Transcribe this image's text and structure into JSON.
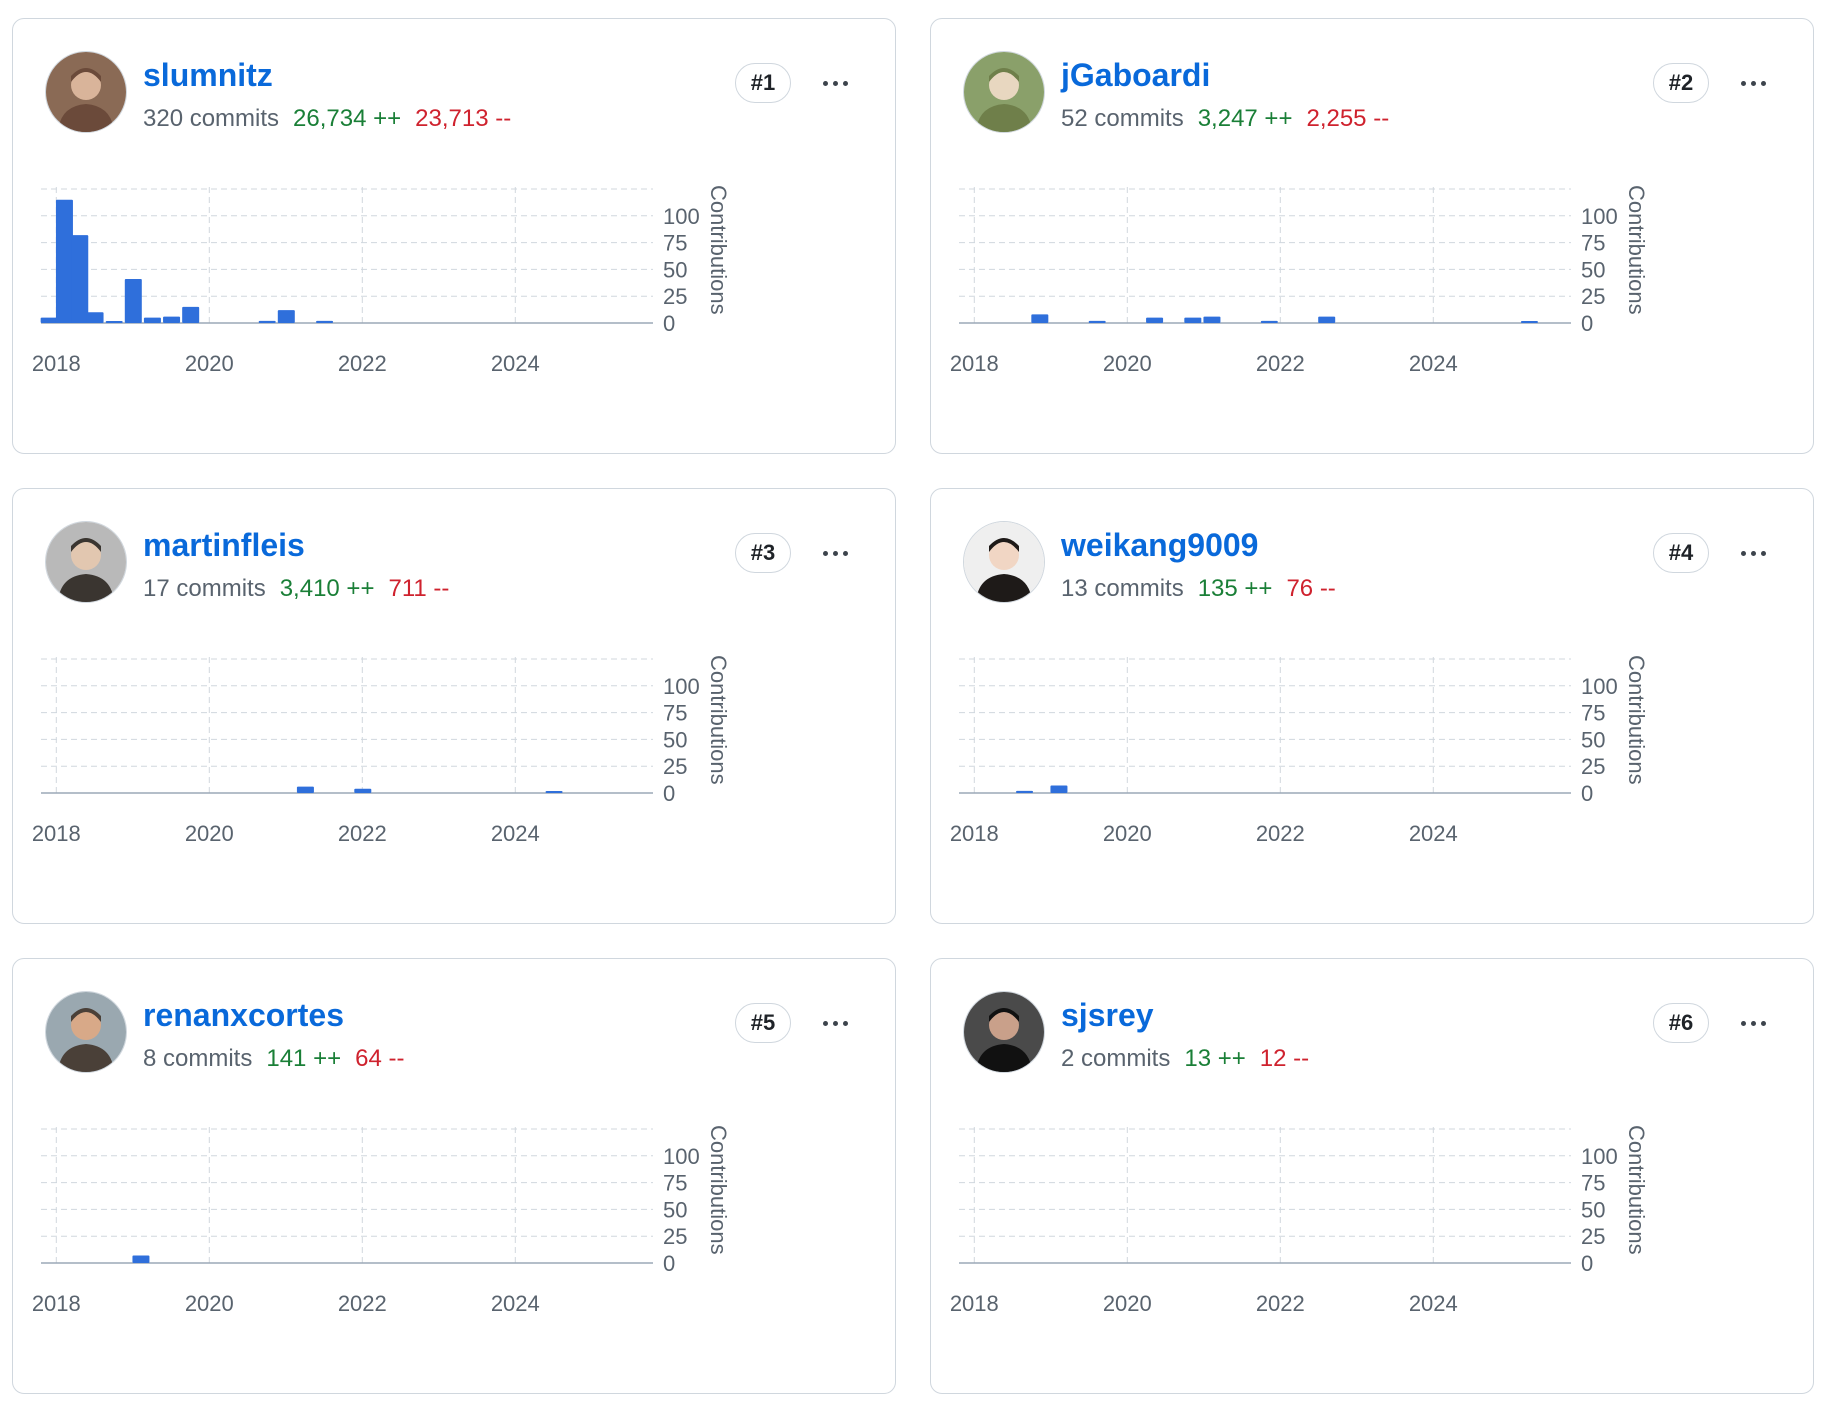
{
  "chart_axes": {
    "x_ticks": [
      "2018",
      "2020",
      "2022",
      "2024"
    ],
    "y_ticks": [
      "0",
      "25",
      "50",
      "75",
      "100"
    ],
    "y_label": "Contributions",
    "bar_color": "#2f6fdb"
  },
  "colors": {
    "link": "#0969da",
    "additions": "#1a7f37",
    "deletions": "#cf222e",
    "border": "#d0d7de"
  },
  "contributors": [
    {
      "username": "slumnitz",
      "rank": "#1",
      "commits": "320 commits",
      "additions": "26,734 ++",
      "deletions": "23,713 --",
      "avatar": "avatar-photo-icon",
      "menu": "more-options-icon"
    },
    {
      "username": "jGaboardi",
      "rank": "#2",
      "commits": "52 commits",
      "additions": "3,247 ++",
      "deletions": "2,255 --",
      "avatar": "avatar-photo-icon",
      "menu": "more-options-icon"
    },
    {
      "username": "martinfleis",
      "rank": "#3",
      "commits": "17 commits",
      "additions": "3,410 ++",
      "deletions": "711 --",
      "avatar": "avatar-photo-icon",
      "menu": "more-options-icon"
    },
    {
      "username": "weikang9009",
      "rank": "#4",
      "commits": "13 commits",
      "additions": "135 ++",
      "deletions": "76 --",
      "avatar": "avatar-photo-icon",
      "menu": "more-options-icon"
    },
    {
      "username": "renanxcortes",
      "rank": "#5",
      "commits": "8 commits",
      "additions": "141 ++",
      "deletions": "64 --",
      "avatar": "avatar-photo-icon",
      "menu": "more-options-icon"
    },
    {
      "username": "sjsrey",
      "rank": "#6",
      "commits": "2 commits",
      "additions": "13 ++",
      "deletions": "12 --",
      "avatar": "avatar-photo-icon",
      "menu": "more-options-icon"
    }
  ],
  "chart_data": [
    {
      "type": "bar",
      "xlabel": "",
      "ylabel": "Contributions",
      "ylim": [
        0,
        125
      ],
      "x_range": [
        2017.8,
        2025.8
      ],
      "x": [
        2017.9,
        2018.1,
        2018.3,
        2018.5,
        2018.75,
        2019.0,
        2019.25,
        2019.5,
        2019.75,
        2020.75,
        2021.0,
        2021.5
      ],
      "values": [
        5,
        115,
        82,
        10,
        1,
        41,
        5,
        6,
        15,
        2,
        12,
        2
      ]
    },
    {
      "type": "bar",
      "xlabel": "",
      "ylabel": "Contributions",
      "ylim": [
        0,
        125
      ],
      "x_range": [
        2017.8,
        2025.8
      ],
      "x": [
        2018.85,
        2019.6,
        2020.35,
        2020.85,
        2021.1,
        2021.85,
        2022.6,
        2025.25
      ],
      "values": [
        8,
        2,
        5,
        5,
        6,
        2,
        6,
        1
      ]
    },
    {
      "type": "bar",
      "xlabel": "",
      "ylabel": "Contributions",
      "ylim": [
        0,
        125
      ],
      "x_range": [
        2017.8,
        2025.8
      ],
      "x": [
        2021.25,
        2022.0,
        2024.5
      ],
      "values": [
        6,
        4,
        1
      ]
    },
    {
      "type": "bar",
      "xlabel": "",
      "ylabel": "Contributions",
      "ylim": [
        0,
        125
      ],
      "x_range": [
        2017.8,
        2025.8
      ],
      "x": [
        2018.65,
        2019.1
      ],
      "values": [
        2,
        7
      ]
    },
    {
      "type": "bar",
      "xlabel": "",
      "ylabel": "Contributions",
      "ylim": [
        0,
        125
      ],
      "x_range": [
        2017.8,
        2025.8
      ],
      "x": [
        2019.1
      ],
      "values": [
        7
      ]
    },
    {
      "type": "bar",
      "xlabel": "",
      "ylabel": "Contributions",
      "ylim": [
        0,
        125
      ],
      "x_range": [
        2017.8,
        2025.8
      ],
      "x": [],
      "values": []
    }
  ]
}
